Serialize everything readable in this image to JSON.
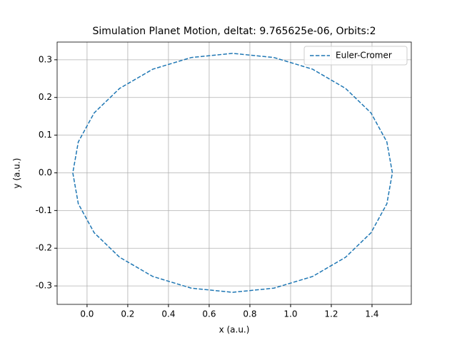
{
  "chart_data": {
    "type": "line",
    "title": "Simulation Planet Motion, deltat: 9.765625e-06, Orbits:2",
    "x_label": "x (a.u.)",
    "y_label": "y (a.u.)",
    "x": [
      1.5,
      1.473,
      1.395,
      1.27,
      1.108,
      0.918,
      0.715,
      0.512,
      0.323,
      0.16,
      0.035,
      -0.043,
      -0.07,
      -0.043,
      0.035,
      0.16,
      0.323,
      0.512,
      0.715,
      0.918,
      1.108,
      1.27,
      1.395,
      1.473,
      1.5
    ],
    "series": [
      {
        "name": "Euler-Cromer",
        "color": "#1f77b4",
        "dashed": true,
        "values": [
          0,
          0.082,
          0.159,
          0.224,
          0.275,
          0.306,
          0.317,
          0.306,
          0.275,
          0.224,
          0.159,
          0.082,
          0,
          -0.082,
          -0.159,
          -0.224,
          -0.275,
          -0.306,
          -0.317,
          -0.306,
          -0.275,
          -0.224,
          -0.159,
          -0.082,
          0
        ]
      }
    ],
    "xlim": [
      -0.147,
      1.593
    ],
    "ylim": [
      -0.349,
      0.347
    ],
    "xticks": [
      {
        "value": 0,
        "label": "0.0"
      },
      0.2,
      0.4,
      0.6,
      0.8,
      {
        "value": 1,
        "label": "1.0"
      },
      1.2,
      1.4
    ],
    "yticks": [
      -0.3,
      -0.2,
      -0.1,
      {
        "value": 0,
        "label": "0.0"
      },
      0.1,
      0.2,
      0.3
    ],
    "grid": true,
    "legend": "upper right"
  }
}
